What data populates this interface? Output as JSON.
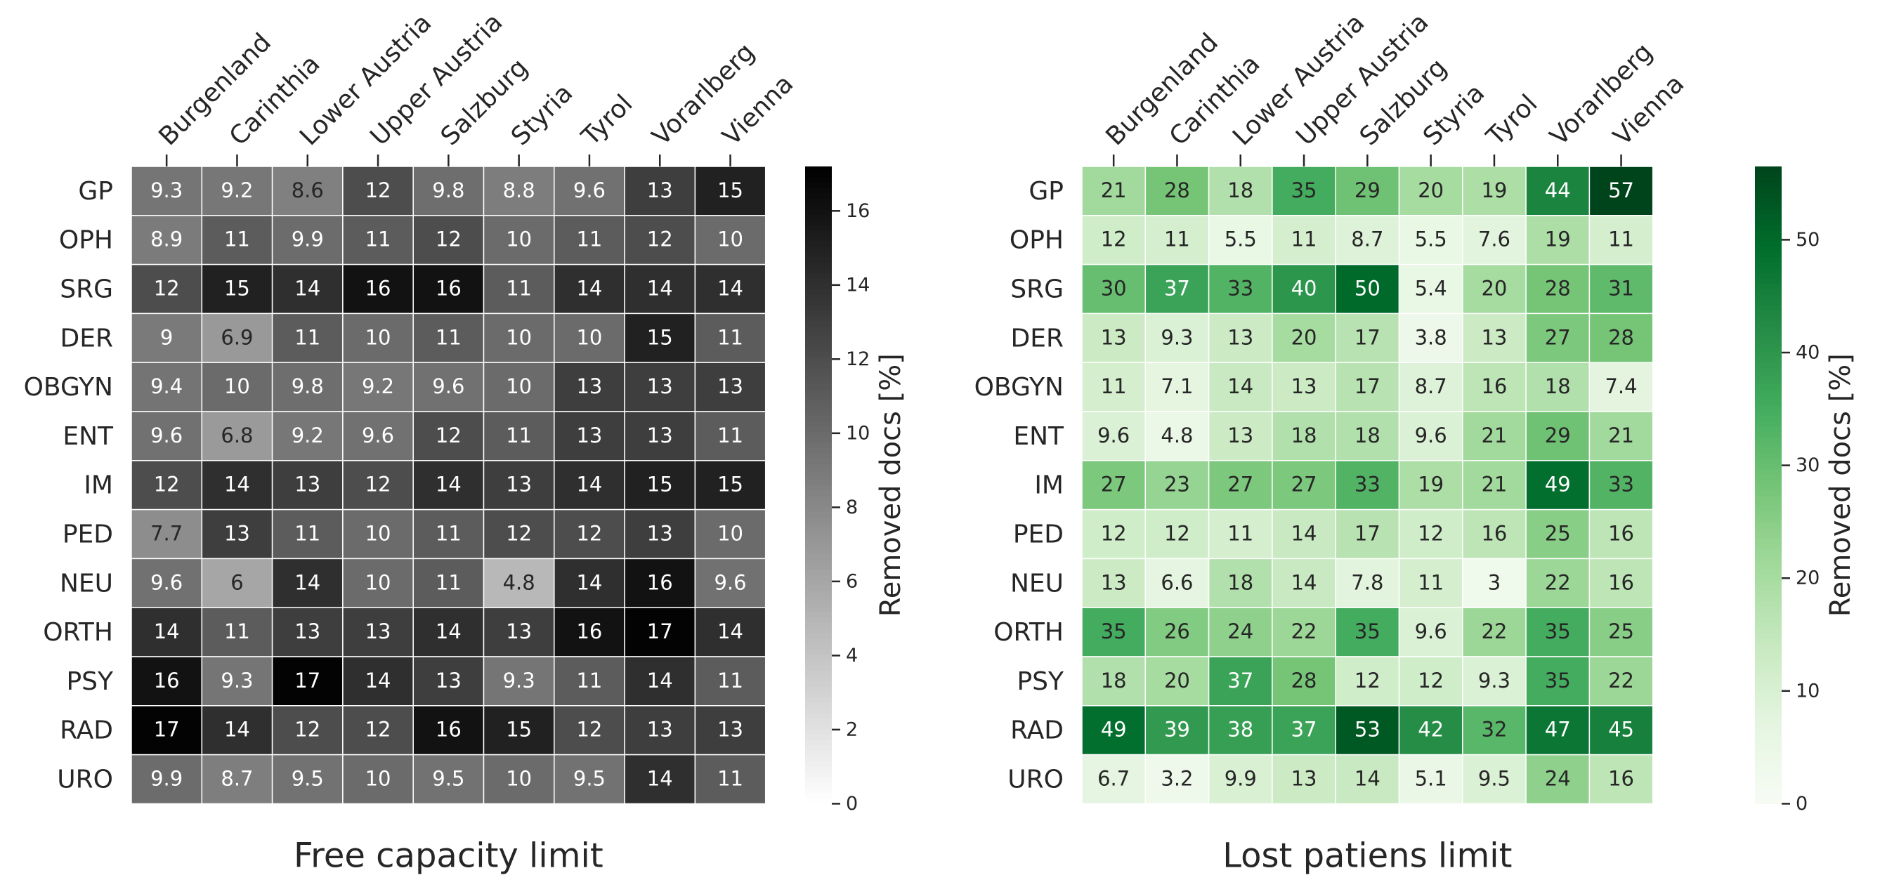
{
  "chart_data": [
    {
      "type": "heatmap",
      "title": "Free capacity limit",
      "colormap": "greys",
      "colors": {
        "low": "#ffffff",
        "high": "#000000"
      },
      "x_categories": [
        "Burgenland",
        "Carinthia",
        "Lower Austria",
        "Upper Austria",
        "Salzburg",
        "Styria",
        "Tyrol",
        "Vorarlberg",
        "Vienna"
      ],
      "y_categories": [
        "GP",
        "OPH",
        "SRG",
        "DER",
        "OBGYN",
        "ENT",
        "IM",
        "PED",
        "NEU",
        "ORTH",
        "PSY",
        "RAD",
        "URO"
      ],
      "values": [
        [
          9.3,
          9.2,
          8.6,
          12,
          9.8,
          8.8,
          9.6,
          13,
          15
        ],
        [
          8.9,
          11,
          9.9,
          11,
          12,
          10,
          11,
          12,
          10
        ],
        [
          12,
          15,
          14,
          16,
          16,
          11,
          14,
          14,
          14
        ],
        [
          9,
          6.9,
          11,
          10,
          11,
          10,
          10,
          15,
          11
        ],
        [
          9.4,
          10,
          9.8,
          9.2,
          9.6,
          10,
          13,
          13,
          13
        ],
        [
          9.6,
          6.8,
          9.2,
          9.6,
          12,
          11,
          13,
          13,
          11
        ],
        [
          12,
          14,
          13,
          12,
          14,
          13,
          14,
          15,
          15
        ],
        [
          7.7,
          13,
          11,
          10,
          11,
          12,
          12,
          13,
          10
        ],
        [
          9.6,
          6,
          14,
          10,
          11,
          4.8,
          14,
          16,
          9.6
        ],
        [
          14,
          11,
          13,
          13,
          14,
          13,
          16,
          17,
          14
        ],
        [
          16,
          9.3,
          17,
          14,
          13,
          9.3,
          11,
          14,
          11
        ],
        [
          17,
          14,
          12,
          12,
          16,
          15,
          12,
          13,
          13
        ],
        [
          9.9,
          8.7,
          9.5,
          10,
          9.5,
          10,
          9.5,
          14,
          11
        ]
      ],
      "colorbar": {
        "label": "Removed docs [%]",
        "range": [
          0,
          17.2
        ],
        "ticks": [
          0,
          2,
          4,
          6,
          8,
          10,
          12,
          14,
          16
        ]
      }
    },
    {
      "type": "heatmap",
      "title": "Lost patiens limit",
      "colormap": "greens",
      "colors": {
        "low": "#f7fcf5",
        "high": "#00441b"
      },
      "x_categories": [
        "Burgenland",
        "Carinthia",
        "Lower Austria",
        "Upper Austria",
        "Salzburg",
        "Styria",
        "Tyrol",
        "Vorarlberg",
        "Vienna"
      ],
      "y_categories": [
        "GP",
        "OPH",
        "SRG",
        "DER",
        "OBGYN",
        "ENT",
        "IM",
        "PED",
        "NEU",
        "ORTH",
        "PSY",
        "RAD",
        "URO"
      ],
      "values": [
        [
          21,
          28,
          18,
          35,
          29,
          20,
          19,
          44,
          57
        ],
        [
          12,
          11,
          5.5,
          11,
          8.7,
          5.5,
          7.6,
          19,
          11
        ],
        [
          30,
          37,
          33,
          40,
          50,
          5.4,
          20,
          28,
          31
        ],
        [
          13,
          9.3,
          13,
          20,
          17,
          3.8,
          13,
          27,
          28
        ],
        [
          11,
          7.1,
          14,
          13,
          17,
          8.7,
          16,
          18,
          7.4
        ],
        [
          9.6,
          4.8,
          13,
          18,
          18,
          9.6,
          21,
          29,
          21
        ],
        [
          27,
          23,
          27,
          27,
          33,
          19,
          21,
          49,
          33
        ],
        [
          12,
          12,
          11,
          14,
          17,
          12,
          16,
          25,
          16
        ],
        [
          13,
          6.6,
          18,
          14,
          7.8,
          11,
          3,
          22,
          16
        ],
        [
          35,
          26,
          24,
          22,
          35,
          9.6,
          22,
          35,
          25
        ],
        [
          18,
          20,
          37,
          28,
          12,
          12,
          9.3,
          35,
          22
        ],
        [
          49,
          39,
          38,
          37,
          53,
          42,
          32,
          47,
          45
        ],
        [
          6.7,
          3.2,
          9.9,
          13,
          14,
          5.1,
          9.5,
          24,
          16
        ]
      ],
      "colorbar": {
        "label": "Removed docs [%]",
        "range": [
          0,
          56.5
        ],
        "ticks": [
          0,
          10,
          20,
          30,
          40,
          50
        ]
      }
    }
  ]
}
